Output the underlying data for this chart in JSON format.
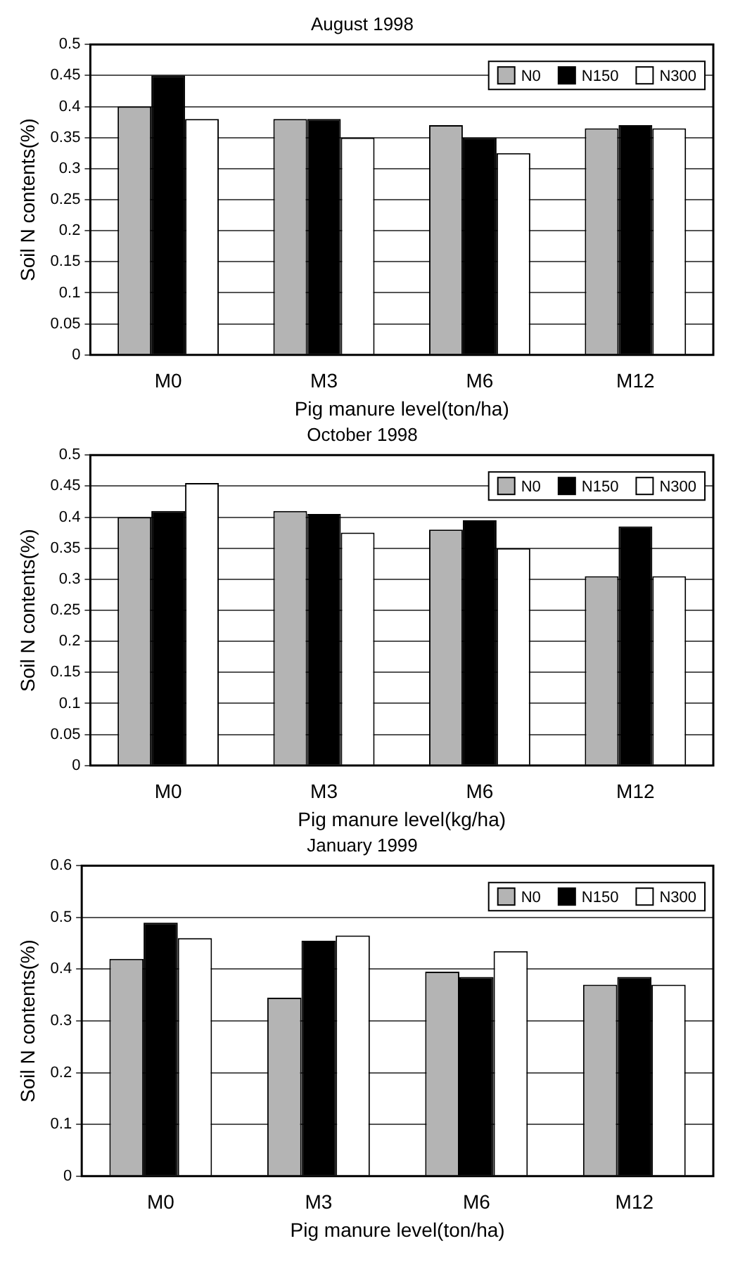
{
  "chart_data": [
    {
      "type": "bar",
      "title": "August 1998",
      "xlabel": "Pig manure level(ton/ha)",
      "ylabel": "Soil N contents(%)",
      "categories": [
        "M0",
        "M3",
        "M6",
        "M12"
      ],
      "ylim": [
        0,
        0.5
      ],
      "yticks": [
        0,
        0.05,
        0.1,
        0.15,
        0.2,
        0.25,
        0.3,
        0.35,
        0.4,
        0.45,
        0.5
      ],
      "grid": "y",
      "legend": "top right",
      "series": [
        {
          "name": "N0",
          "color": "#b4b4b4",
          "values": [
            0.4,
            0.38,
            0.37,
            0.365
          ]
        },
        {
          "name": "N150",
          "color": "#000000",
          "values": [
            0.45,
            0.38,
            0.35,
            0.37
          ]
        },
        {
          "name": "N300",
          "color": "#ffffff",
          "values": [
            0.38,
            0.35,
            0.325,
            0.365
          ]
        }
      ]
    },
    {
      "type": "bar",
      "title": "October 1998",
      "xlabel": "Pig manure level(kg/ha)",
      "ylabel": "Soil N contents(%)",
      "categories": [
        "M0",
        "M3",
        "M6",
        "M12"
      ],
      "ylim": [
        0,
        0.5
      ],
      "yticks": [
        0,
        0.05,
        0.1,
        0.15,
        0.2,
        0.25,
        0.3,
        0.35,
        0.4,
        0.45,
        0.5
      ],
      "grid": "y",
      "legend": "top right",
      "series": [
        {
          "name": "N0",
          "color": "#b4b4b4",
          "values": [
            0.4,
            0.41,
            0.38,
            0.305
          ]
        },
        {
          "name": "N150",
          "color": "#000000",
          "values": [
            0.41,
            0.405,
            0.395,
            0.385
          ]
        },
        {
          "name": "N300",
          "color": "#ffffff",
          "values": [
            0.455,
            0.375,
            0.35,
            0.305
          ]
        }
      ]
    },
    {
      "type": "bar",
      "title": "January 1999",
      "xlabel": "Pig manure level(ton/ha)",
      "ylabel": "Soil N contents(%)",
      "categories": [
        "M0",
        "M3",
        "M6",
        "M12"
      ],
      "ylim": [
        0,
        0.6
      ],
      "yticks": [
        0,
        0.1,
        0.2,
        0.3,
        0.4,
        0.5,
        0.6
      ],
      "grid": "y",
      "legend": "top right",
      "series": [
        {
          "name": "N0",
          "color": "#b4b4b4",
          "values": [
            0.42,
            0.345,
            0.395,
            0.37
          ]
        },
        {
          "name": "N150",
          "color": "#000000",
          "values": [
            0.49,
            0.455,
            0.385,
            0.385
          ]
        },
        {
          "name": "N300",
          "color": "#ffffff",
          "values": [
            0.46,
            0.465,
            0.435,
            0.37
          ]
        }
      ]
    }
  ]
}
